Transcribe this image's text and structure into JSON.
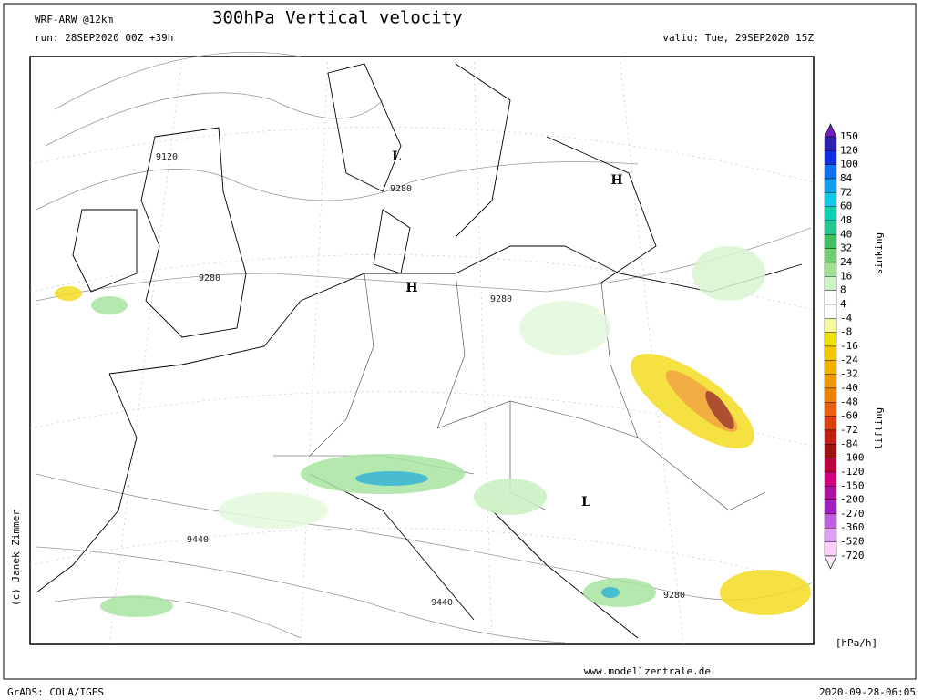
{
  "header": {
    "model": "WRF-ARW @12km",
    "title": "300hPa Vertical velocity",
    "run": "run: 28SEP2020 00Z +39h",
    "valid": "valid: Tue, 29SEP2020 15Z"
  },
  "map": {
    "labels": [
      "L",
      "9280",
      "H",
      "9120",
      "9280",
      "H",
      "9280",
      "L",
      "9440",
      "9440",
      "9280"
    ]
  },
  "legend": {
    "levels": [
      "150",
      "120",
      "100",
      "84",
      "72",
      "60",
      "48",
      "40",
      "32",
      "24",
      "16",
      "8",
      "4",
      "-4",
      "-8",
      "-16",
      "-24",
      "-32",
      "-40",
      "-48",
      "-60",
      "-72",
      "-84",
      "-100",
      "-120",
      "-150",
      "-200",
      "-270",
      "-360",
      "-520",
      "-720"
    ],
    "sinking": "sinking",
    "lifting": "lifting",
    "unit": "[hPa/h]"
  },
  "footer": {
    "copyright": "(c) Janek Zimmer",
    "website": "www.modellzentrale.de",
    "grads": "GrADS: COLA/IGES",
    "timestamp": "2020-09-28-06:05"
  }
}
